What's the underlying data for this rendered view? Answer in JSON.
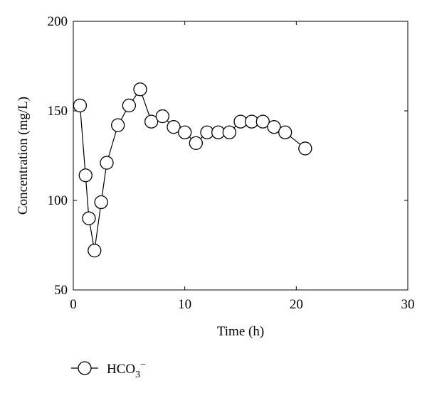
{
  "chart_data": {
    "type": "line",
    "xlabel": "Time (h)",
    "ylabel": "Concentration (mg/L)",
    "xlim": [
      0,
      30
    ],
    "ylim": [
      50,
      200
    ],
    "x_ticks": [
      0,
      10,
      20,
      30
    ],
    "y_ticks": [
      50,
      100,
      150,
      200
    ],
    "grid": false,
    "legend_position": "bottom-left",
    "marker": "open-circle",
    "colors": {
      "line": "#000000",
      "marker_fill": "#ffffff",
      "axis": "#000000"
    },
    "series": [
      {
        "name": "HCO3−",
        "legend_label": {
          "base": "HCO",
          "sub": "3",
          "sup": "−"
        },
        "x": [
          0.6,
          1.1,
          1.4,
          1.9,
          2.5,
          3.0,
          4.0,
          5.0,
          6.0,
          7.0,
          8.0,
          9.0,
          10.0,
          11.0,
          12.0,
          13.0,
          14.0,
          15.0,
          16.0,
          17.0,
          18.0,
          19.0,
          20.8
        ],
        "y": [
          153,
          114,
          90,
          72,
          99,
          121,
          142,
          153,
          162,
          144,
          147,
          141,
          138,
          132,
          138,
          138,
          138,
          144,
          144,
          144,
          141,
          138,
          129
        ]
      }
    ]
  }
}
